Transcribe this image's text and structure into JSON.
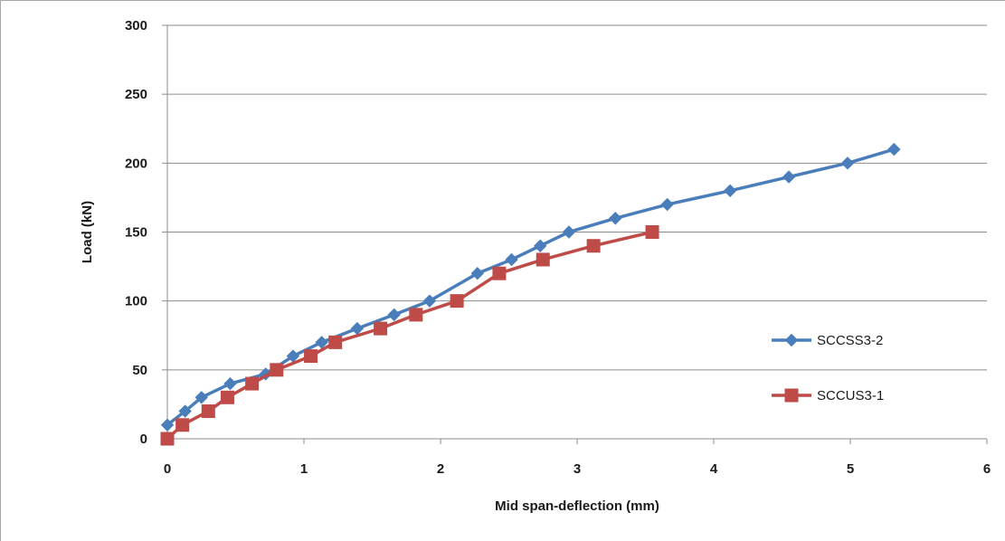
{
  "chart_data": {
    "type": "line",
    "title": "",
    "xlabel": "Mid span-deflection (mm)",
    "ylabel": "Load (kN)",
    "xlim": [
      0,
      6
    ],
    "ylim": [
      0,
      300
    ],
    "xticks": [
      "0",
      "1",
      "2",
      "3",
      "4",
      "5",
      "6"
    ],
    "yticks": [
      "0",
      "50",
      "100",
      "150",
      "200",
      "250",
      "300"
    ],
    "grid": "horizontal",
    "legend_position": "right",
    "series": [
      {
        "name": "SCCSS3-2",
        "color": "#4a7ebb",
        "marker": "diamond",
        "x": [
          0.0,
          0.13,
          0.25,
          0.46,
          0.72,
          0.92,
          1.13,
          1.39,
          1.66,
          1.92,
          2.27,
          2.52,
          2.73,
          2.94,
          3.28,
          3.66,
          4.12,
          4.55,
          4.98,
          5.32
        ],
        "y": [
          10,
          20,
          30,
          40,
          47,
          60,
          70,
          80,
          90,
          100,
          120,
          130,
          140,
          150,
          160,
          170,
          180,
          190,
          200,
          210
        ]
      },
      {
        "name": "SCCUS3-1",
        "color": "#be4b48",
        "marker": "square",
        "x": [
          0.0,
          0.11,
          0.3,
          0.44,
          0.62,
          0.8,
          1.05,
          1.23,
          1.56,
          1.82,
          2.12,
          2.43,
          2.75,
          3.12,
          3.55
        ],
        "y": [
          0,
          10,
          20,
          30,
          40,
          50,
          60,
          70,
          80,
          90,
          100,
          120,
          130,
          140,
          150
        ]
      }
    ]
  }
}
